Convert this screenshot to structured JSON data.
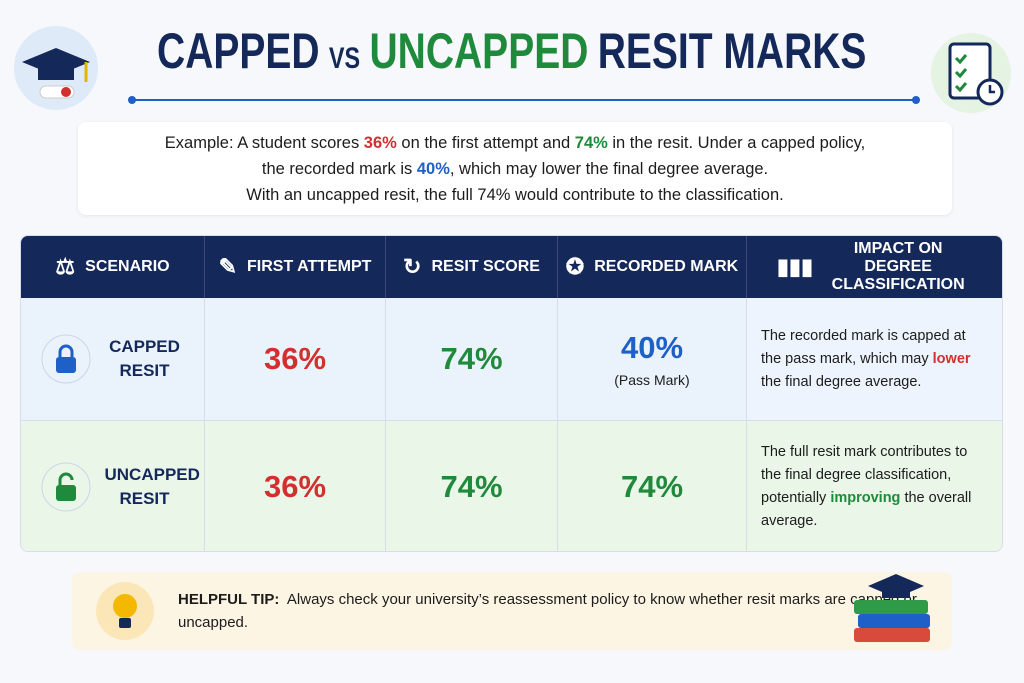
{
  "header": {
    "title": [
      {
        "text": "CAPPED",
        "color": "#14285a"
      },
      {
        "text": "VS",
        "color": "#14285a"
      },
      {
        "text": "UNCAPPED",
        "color": "#1f8a3b"
      },
      {
        "text": "RESIT MARKS",
        "color": "#14285a"
      }
    ]
  },
  "intro": {
    "lines": [
      [
        {
          "text": "Example: A student scores "
        },
        {
          "text": "36%",
          "color": "#d32f2f"
        },
        {
          "text": " on the first attempt and "
        },
        {
          "text": "74%",
          "color": "#1f8a3b"
        },
        {
          "text": " in the resit. Under a capped policy,"
        }
      ],
      [
        {
          "text": "the recorded mark is "
        },
        {
          "text": "40%",
          "color": "#1e5fc8"
        },
        {
          "text": ", which may lower the final degree average."
        }
      ],
      [
        {
          "text": "With an uncapped resit, the full 74% would contribute to the classification."
        }
      ]
    ]
  },
  "table": {
    "headers": [
      "SCENARIO",
      "FIRST ATTEMPT",
      "RESIT SCORE",
      "RECORDED MARK",
      "IMPACT ON DEGREE CLASSIFICATION"
    ],
    "rows": [
      {
        "scenario": "CAPPED RESIT",
        "first_attempt": "36%",
        "resit_score": "74%",
        "recorded_mark": "40%",
        "recorded_note": "(Pass Mark)",
        "recorded_color": "#1e5fc8",
        "impact": [
          {
            "text": "The recorded mark is capped at the pass mark, which may "
          },
          {
            "text": "lower",
            "color": "#d32f2f"
          },
          {
            "text": " the final degree average."
          }
        ]
      },
      {
        "scenario": "UNCAPPED RESIT",
        "first_attempt": "36%",
        "resit_score": "74%",
        "recorded_mark": "74%",
        "recorded_color": "#1f8a3b",
        "impact": [
          {
            "text": "The full resit mark contributes to the final degree classification, potentially "
          },
          {
            "text": "improving",
            "color": "#1f8a3b"
          },
          {
            "text": " the overall average."
          }
        ]
      }
    ]
  },
  "tip": {
    "label": "HELPFUL TIP:",
    "text": "Always check your university’s reassessment policy to know whether resit marks are capped or uncapped."
  }
}
